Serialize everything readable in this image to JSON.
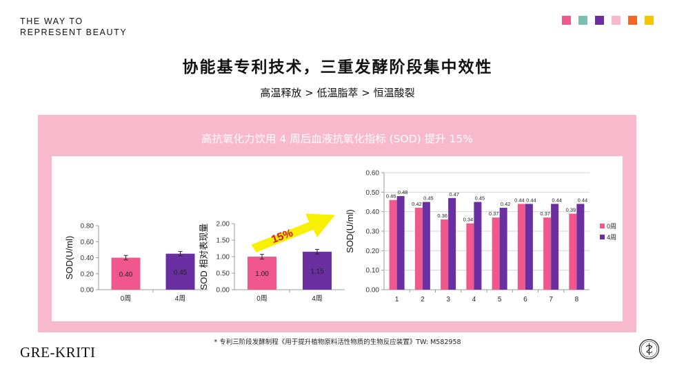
{
  "header": {
    "tagline": "THE WAY TO\nREPRESENT BEAUTY",
    "swatches": [
      "#f0588d",
      "#7bbfb0",
      "#6a2fa0",
      "#f7b8cc",
      "#f26526",
      "#f7c600"
    ]
  },
  "title": "协能基专利技术，三重发酵阶段集中效性",
  "subtitle": "高温释放 > 低温脂萃 > 恒温酸裂",
  "panel": {
    "title": "高抗氧化力饮用 4 周后血液抗氧化指标 (SOD) 提升 15%",
    "bg_color": "#f9b9cc"
  },
  "colors": {
    "pink": "#f0588d",
    "purple": "#6a2fa0",
    "arrow": "#f7f000"
  },
  "chart_data": [
    {
      "type": "bar",
      "categories": [
        "0周",
        "4周"
      ],
      "values": [
        0.4,
        0.45
      ],
      "data_labels": [
        "0.40",
        "0.45"
      ],
      "error_bars": true,
      "ylabel": "SOD(U/ml)",
      "ylim": [
        0,
        0.8
      ],
      "yticks": [
        "0.00",
        "0.20",
        "0.40",
        "0.60",
        "0.80"
      ],
      "grid": false
    },
    {
      "type": "bar",
      "categories": [
        "0周",
        "4周"
      ],
      "values": [
        1.0,
        1.15
      ],
      "data_labels": [
        "1.00",
        "1.15"
      ],
      "error_bars": true,
      "ylabel": "SOD 相对表现量",
      "ylim": [
        0,
        2
      ],
      "yticks": [
        "0.00",
        "0.50",
        "1.00",
        "1.50",
        "2.00"
      ],
      "annotation": "15%",
      "grid": false
    },
    {
      "type": "bar",
      "categories": [
        "1",
        "2",
        "3",
        "4",
        "5",
        "6",
        "7",
        "8"
      ],
      "series": [
        {
          "name": "0周",
          "values": [
            0.46,
            0.42,
            0.36,
            0.34,
            0.37,
            0.44,
            0.37,
            0.39
          ],
          "labels": [
            "0.46",
            "0.42",
            "0.36",
            "0.34",
            "0.37",
            "0.44",
            "0.37",
            "0.39"
          ]
        },
        {
          "name": "4周",
          "values": [
            0.48,
            0.45,
            0.47,
            0.45,
            0.42,
            0.44,
            0.44,
            0.44
          ],
          "labels": [
            "0.48",
            "0.45",
            "0.47",
            "0.45",
            "0.42",
            "0.44",
            "0.44",
            "0.44"
          ]
        }
      ],
      "ylabel": "SOD(U/ml)",
      "ylim": [
        0,
        0.6
      ],
      "yticks": [
        "0.00",
        "0.10",
        "0.20",
        "0.30",
        "0.40",
        "0.50",
        "0.60"
      ],
      "legend": "right",
      "grid": true
    }
  ],
  "footnote": "* 专利三阶段发酵制程《用于提升植物原料活性物质的生物反应装置》TW: M582958",
  "brand": {
    "logo": "GRE-KRITI",
    "seal_icon": "brand-seal-icon"
  }
}
